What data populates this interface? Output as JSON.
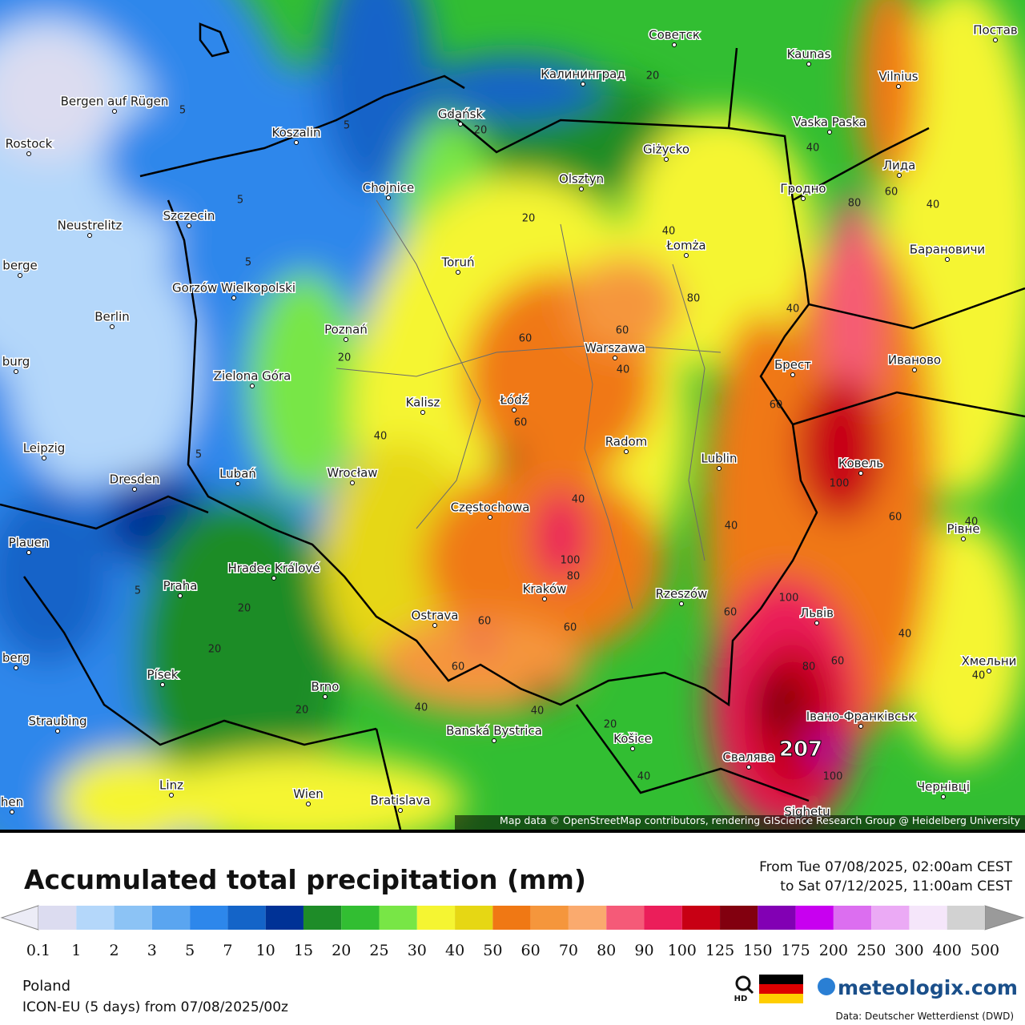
{
  "map": {
    "attribution": "Map data © OpenStreetMap contributors, rendering GIScience Research Group @ Heidelberg University",
    "cities": [
      "Советск",
      "Kaunas",
      "Калининград",
      "Vilnius",
      "Постав",
      "Bergen auf Rügen",
      "Gdańsk",
      "Koszalin",
      "Rostock",
      "Vaska Paska",
      "Giżycko",
      "Лида",
      "Chojnice",
      "Olsztyn",
      "Гродно",
      "Szczecin",
      "Neustrelitz",
      "Toruń",
      "Łomża",
      "Барановичи",
      "Gorzów Wielkopolski",
      "Berlin",
      "Poznań",
      "Warszawa",
      "Брест",
      "Иваново",
      "Zielona Góra",
      "Kalisz",
      "Łódź",
      "Radom",
      "Lublin",
      "Ковель",
      "Leipzig",
      "Dresden",
      "Lubań",
      "Wrocław",
      "Częstochowa",
      "Рівне",
      "Plauen",
      "Hradec Králové",
      "Praha",
      "Kraków",
      "Rzeszów",
      "Львів",
      "Ostrava",
      "Хмельни",
      "Písek",
      "Brno",
      "Straubing",
      "Івано-Франківськ",
      "Banská Bystrica",
      "Košice",
      "Свалява",
      "Linz",
      "Wien",
      "Bratislava",
      "Чернівці",
      "Sighetu",
      "berge",
      "burg",
      "berg",
      "hen"
    ],
    "contour_labels": [
      5,
      5,
      5,
      5,
      5,
      5,
      20,
      20,
      20,
      20,
      20,
      20,
      20,
      20,
      40,
      40,
      40,
      40,
      40,
      40,
      40,
      40,
      40,
      40,
      40,
      40,
      40,
      40,
      60,
      60,
      60,
      60,
      60,
      60,
      60,
      60,
      60,
      60,
      60,
      80,
      80,
      80,
      80,
      100,
      100,
      100,
      100
    ],
    "max_value": 207
  },
  "legend": {
    "title": "Accumulated total precipitation (mm)",
    "from": "From Tue 07/08/2025, 02:00am CEST",
    "to": "to Sat 07/12/2025, 11:00am CEST",
    "under_color": "#ececf6",
    "over_color": "#9a9a9a",
    "colors": [
      "#dcdcf0",
      "#b4d7fa",
      "#8cc3f5",
      "#5aa5f0",
      "#2d87eb",
      "#1464c8",
      "#003296",
      "#1e8c28",
      "#32be32",
      "#78e646",
      "#f5f532",
      "#e6d714",
      "#f07814",
      "#f5963c",
      "#faaa6e",
      "#f55a78",
      "#eb1e5a",
      "#c80014",
      "#82000f",
      "#8200b4",
      "#c800f0",
      "#dc6ef0",
      "#ebaaf5",
      "#f5e6fa",
      "#d2d2d2"
    ],
    "ticks": [
      0.1,
      1,
      2,
      3,
      5,
      7,
      10,
      15,
      20,
      25,
      30,
      40,
      50,
      60,
      70,
      80,
      90,
      100,
      125,
      150,
      175,
      200,
      250,
      300,
      400,
      500
    ]
  },
  "footer": {
    "region": "Poland",
    "model": "ICON-EU (5 days) from 07/08/2025/00z",
    "hd": "HD",
    "brand": "meteologix.com",
    "source": "Data: Deutscher Wetterdienst (DWD)"
  }
}
